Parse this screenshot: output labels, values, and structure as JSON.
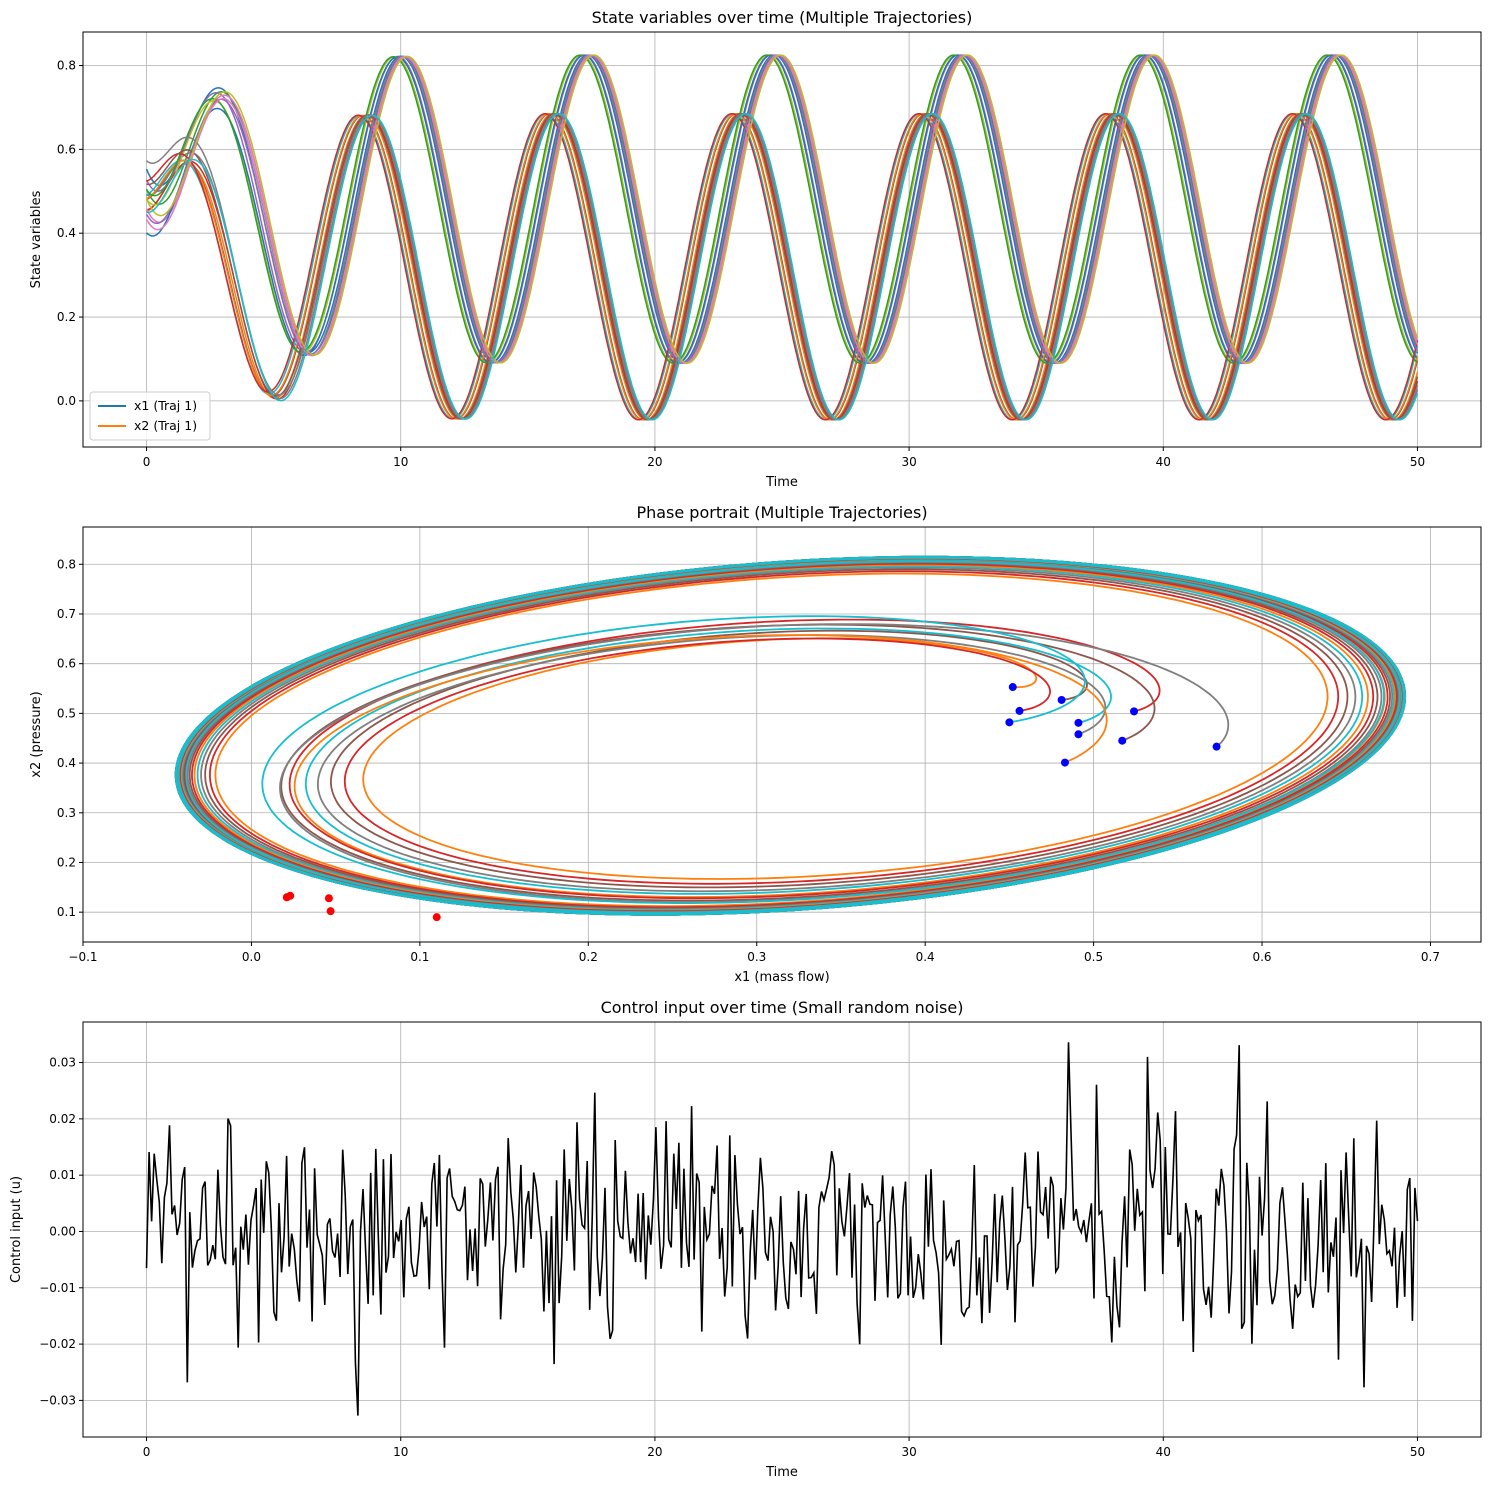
{
  "palette": [
    "#1f77b4",
    "#ff7f0e",
    "#2ca02c",
    "#d62728",
    "#9467bd",
    "#8c564b",
    "#e377c2",
    "#7f7f7f",
    "#bcbd22",
    "#17becf"
  ],
  "chart_data": [
    {
      "type": "line",
      "title": "State variables over time (Multiple Trajectories)",
      "xlabel": "Time",
      "ylabel": "State variables",
      "xlim": [
        -2.5,
        52.5
      ],
      "ylim": [
        -0.11,
        0.88
      ],
      "xticks": [
        0,
        10,
        20,
        30,
        40,
        50
      ],
      "yticks": [
        0.0,
        0.2,
        0.4,
        0.6,
        0.8
      ],
      "xtick_labels": [
        "0",
        "10",
        "20",
        "30",
        "40",
        "50"
      ],
      "ytick_labels": [
        "0.0",
        "0.2",
        "0.4",
        "0.6",
        "0.8"
      ],
      "grid": true,
      "legend": {
        "position": "lower-left",
        "entries": [
          {
            "label": "x1 (Traj 1)",
            "color": "#1f77b4"
          },
          {
            "label": "x2 (Traj 1)",
            "color": "#ff7f0e"
          }
        ]
      },
      "oscillation_model": {
        "x1": {
          "period": 7.35,
          "min": -0.045,
          "max": 0.685,
          "phase_ref_min_t": 12.3
        },
        "x2": {
          "period": 7.35,
          "min": 0.09,
          "max": 0.825,
          "phase_ref_max_t": 10.0
        }
      },
      "trajectories": [
        {
          "x1_0": 0.452,
          "x2_0": 0.553,
          "dt": 0.0
        },
        {
          "x1_0": 0.456,
          "x2_0": 0.505,
          "dt": 0.1
        },
        {
          "x1_0": 0.481,
          "x2_0": 0.527,
          "dt": -0.12
        },
        {
          "x1_0": 0.491,
          "x2_0": 0.458,
          "dt": 0.2
        },
        {
          "x1_0": 0.491,
          "x2_0": 0.481,
          "dt": -0.25
        },
        {
          "x1_0": 0.483,
          "x2_0": 0.401,
          "dt": -0.15
        },
        {
          "x1_0": 0.524,
          "x2_0": 0.504,
          "dt": -0.3
        },
        {
          "x1_0": 0.517,
          "x2_0": 0.445,
          "dt": 0.05
        },
        {
          "x1_0": 0.573,
          "x2_0": 0.433,
          "dt": 0.15
        },
        {
          "x1_0": 0.45,
          "x2_0": 0.482,
          "dt": 0.25
        }
      ]
    },
    {
      "type": "line",
      "title": "Phase portrait (Multiple Trajectories)",
      "xlabel": "x1 (mass flow)",
      "ylabel": "x2 (pressure)",
      "xlim": [
        -0.1,
        0.73
      ],
      "ylim": [
        0.04,
        0.875
      ],
      "xticks": [
        -0.1,
        0.0,
        0.1,
        0.2,
        0.3,
        0.4,
        0.5,
        0.6,
        0.7
      ],
      "yticks": [
        0.1,
        0.2,
        0.3,
        0.4,
        0.5,
        0.6,
        0.7,
        0.8
      ],
      "xtick_labels": [
        "−0.1",
        "0.0",
        "0.1",
        "0.2",
        "0.3",
        "0.4",
        "0.5",
        "0.6",
        "0.7"
      ],
      "ytick_labels": [
        "0.1",
        "0.2",
        "0.3",
        "0.4",
        "0.5",
        "0.6",
        "0.7",
        "0.8"
      ],
      "grid": true,
      "limit_cycle": {
        "x1_center": 0.32,
        "x1_halfwidth": 0.365,
        "x2_center": 0.455,
        "x2_halfheight": 0.37,
        "tilt": 0.36
      },
      "start_marker_color": "#0000ff",
      "end_marker_color": "#ff0000",
      "end_points": [
        [
          0.021,
          0.13
        ],
        [
          0.046,
          0.128
        ],
        [
          0.047,
          0.102
        ],
        [
          0.023,
          0.133
        ],
        [
          0.11,
          0.09
        ]
      ]
    },
    {
      "type": "line",
      "title": "Control input over time (Small random noise)",
      "xlabel": "Time",
      "ylabel": "Control input (u)",
      "xlim": [
        -2.5,
        52.5
      ],
      "ylim": [
        -0.0365,
        0.0372
      ],
      "xticks": [
        0,
        10,
        20,
        30,
        40,
        50
      ],
      "yticks": [
        -0.03,
        -0.02,
        -0.01,
        0.0,
        0.01,
        0.02,
        0.03
      ],
      "xtick_labels": [
        "0",
        "10",
        "20",
        "30",
        "40",
        "50"
      ],
      "ytick_labels": [
        "−0.03",
        "−0.02",
        "−0.01",
        "0.00",
        "0.01",
        "0.02",
        "0.03"
      ],
      "grid": true,
      "color": "#000000",
      "t_start": 0,
      "t_end": 50,
      "n_points": 500,
      "noise_std": 0.01,
      "seed": 42,
      "values_at_ticks": {
        "0": -0.0065,
        "8.3": -0.0327,
        "36.3": 0.0336,
        "43.0": 0.0331,
        "47.9": -0.0277
      }
    }
  ]
}
